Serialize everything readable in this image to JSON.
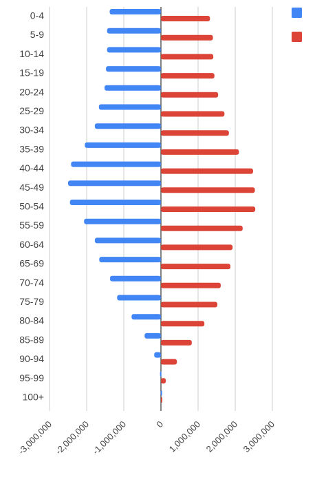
{
  "chart_data": {
    "type": "bar",
    "orientation": "horizontal",
    "stacked_diverging": true,
    "categories": [
      "0-4",
      "5-9",
      "10-14",
      "15-19",
      "20-24",
      "25-29",
      "30-34",
      "35-39",
      "40-44",
      "45-49",
      "50-54",
      "55-59",
      "60-64",
      "65-69",
      "70-74",
      "75-79",
      "80-84",
      "85-89",
      "90-94",
      "95-99",
      "100+"
    ],
    "series": [
      {
        "color": "#4285f4",
        "values": [
          -1380000,
          -1450000,
          -1450000,
          -1480000,
          -1520000,
          -1670000,
          -1780000,
          -2050000,
          -2420000,
          -2500000,
          -2450000,
          -2070000,
          -1780000,
          -1660000,
          -1370000,
          -1180000,
          -790000,
          -440000,
          -180000,
          -25000,
          -5000
        ]
      },
      {
        "color": "#db4437",
        "values": [
          1320000,
          1400000,
          1410000,
          1440000,
          1540000,
          1710000,
          1830000,
          2100000,
          2480000,
          2530000,
          2540000,
          2200000,
          1930000,
          1870000,
          1610000,
          1520000,
          1170000,
          830000,
          430000,
          130000,
          20000
        ]
      }
    ],
    "xlim": [
      -3000000,
      3000000
    ],
    "xticks": [
      "-3,000,000",
      "-2,000,000",
      "-1,000,000",
      "0",
      "1,000,000",
      "2,000,000",
      "3,000,000"
    ],
    "xtick_values": [
      -3000000,
      -2000000,
      -1000000,
      0,
      1000000,
      2000000,
      3000000
    ],
    "grid": true,
    "legend": "top-right"
  }
}
